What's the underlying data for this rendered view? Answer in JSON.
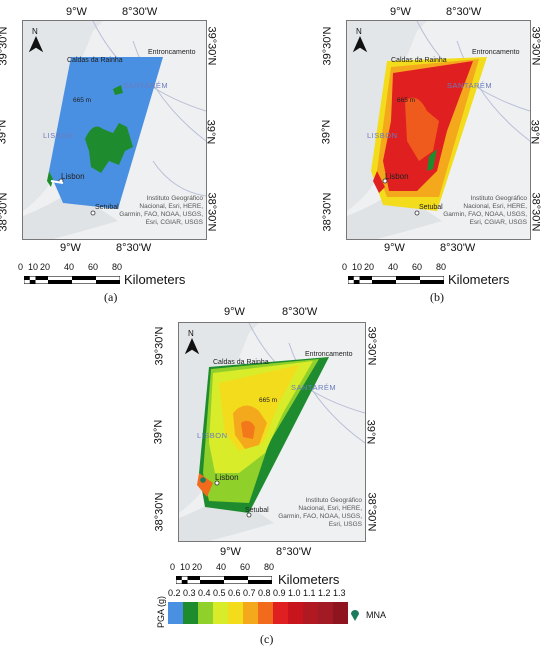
{
  "panels": [
    {
      "id": "a",
      "caption": "(a)",
      "lon_top": [
        "9°W",
        "8°30'W"
      ],
      "lon_bottom": [
        "9°W",
        "8°30'W"
      ],
      "lat_left": [
        "39°30'N",
        "39°N",
        "38°30'N"
      ],
      "lat_right": [
        "39°30'N",
        "39°N",
        "38°30'N"
      ],
      "places": {
        "caldas": "Caldas da Rainha",
        "entron": "Entroncamento",
        "santarem": "SANTARÉM",
        "lisbon_region": "LISBON",
        "lisbon": "Lisbon",
        "setubal": "Setubal",
        "elev": "665 m"
      },
      "attribution": "Instituto Geográfico\nNacional, Esri, HERE,\nGarmin, FAO, NOAA, USGS,\nEsri, CGIAR, USGS",
      "scale_ticks": [
        "0",
        "10",
        "20",
        "40",
        "60",
        "80"
      ],
      "scale_unit": "Kilometers"
    },
    {
      "id": "b",
      "caption": "(b)",
      "lon_top": [
        "9°W",
        "8°30'W"
      ],
      "lon_bottom": [
        "9°W",
        "8°30'W"
      ],
      "lat_left": [
        "39°30'N",
        "39°N",
        "38°30'N"
      ],
      "lat_right": [
        "39°30'N",
        "39°N",
        "38°30'N"
      ],
      "places": {
        "caldas": "Caldas da Rainha",
        "entron": "Entroncamento",
        "santarem": "SANTARÉM",
        "lisbon_region": "LISBON",
        "lisbon": "Lisbon",
        "setubal": "Setubal",
        "elev": "665 m"
      },
      "attribution": "Instituto Geográfico\nNacional, Esri, HERE,\nGarmin, FAO, NOAA, USGS,\nEsri, CGIAR, USGS",
      "scale_ticks": [
        "0",
        "10",
        "20",
        "40",
        "60",
        "80"
      ],
      "scale_unit": "Kilometers"
    },
    {
      "id": "c",
      "caption": "(c)",
      "lon_top": [
        "9°W",
        "8°30'W"
      ],
      "lon_bottom": [
        "9°W",
        "8°30'W"
      ],
      "lat_left": [
        "39°30'N",
        "39°N",
        "38°30'N"
      ],
      "lat_right": [
        "39°30'N",
        "39°N",
        "38°30'N"
      ],
      "places": {
        "caldas": "Caldas da Rainha",
        "entron": "Entroncamento",
        "santarem": "SANTARÉM",
        "lisbon_region": "LISBON",
        "lisbon": "Lisbon",
        "setubal": "Setubal",
        "elev": "665 m"
      },
      "attribution": "Instituto Geográfico\nNacional, Esri, HERE,\nGarmin, FAO, NOAA, USGS,\nEsri, USGS",
      "scale_ticks": [
        "0",
        "10",
        "20",
        "40",
        "60",
        "80"
      ],
      "scale_unit": "Kilometers"
    }
  ],
  "north_label": "N",
  "legend": {
    "title": "PGA (g)",
    "classes": [
      {
        "label": "0.2",
        "color": "#4a90e2"
      },
      {
        "label": "0.3",
        "color": "#1e8c2e"
      },
      {
        "label": "0.4",
        "color": "#8fd12a"
      },
      {
        "label": "0.5",
        "color": "#d8ec2a"
      },
      {
        "label": "0.6",
        "color": "#f3dc1c"
      },
      {
        "label": "0.7",
        "color": "#f4a91c"
      },
      {
        "label": "0.8",
        "color": "#f26a1b"
      },
      {
        "label": "0.9",
        "color": "#e02020"
      },
      {
        "label": "1.0",
        "color": "#c7141d"
      },
      {
        "label": "1.1",
        "color": "#b01822"
      },
      {
        "label": "1.2",
        "color": "#a11a24"
      },
      {
        "label": "1.3",
        "color": "#8e1420"
      }
    ],
    "mna_label": "MNA",
    "mna_color": "#1d7a5e"
  }
}
